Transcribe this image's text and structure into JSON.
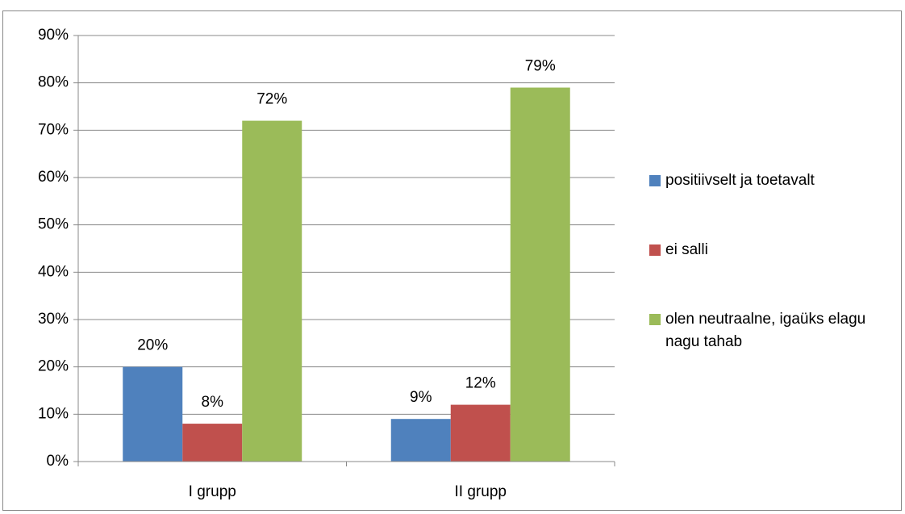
{
  "chart_data": {
    "type": "bar",
    "categories": [
      "I grupp",
      "II grupp"
    ],
    "series": [
      {
        "name": "positiivselt ja toetavalt",
        "color": "#4f81bd",
        "values": [
          20,
          9
        ],
        "value_labels": [
          "20%",
          "9%"
        ]
      },
      {
        "name": "ei salli",
        "color": "#c0504d",
        "values": [
          8,
          12
        ],
        "value_labels": [
          "8%",
          "12%"
        ]
      },
      {
        "name": "olen neutraalne, igaüks elagu nagu tahab",
        "color": "#9bbb59",
        "values": [
          72,
          79
        ],
        "value_labels": [
          "72%",
          "79%"
        ]
      }
    ],
    "ylim": [
      0,
      90
    ],
    "yticks": [
      {
        "value": 0,
        "label": "0%"
      },
      {
        "value": 10,
        "label": "10%"
      },
      {
        "value": 20,
        "label": "20%"
      },
      {
        "value": 30,
        "label": "30%"
      },
      {
        "value": 40,
        "label": "40%"
      },
      {
        "value": 50,
        "label": "50%"
      },
      {
        "value": 60,
        "label": "60%"
      },
      {
        "value": 70,
        "label": "70%"
      },
      {
        "value": 80,
        "label": "80%"
      },
      {
        "value": 90,
        "label": "90%"
      }
    ],
    "grid": true,
    "legend": "right"
  }
}
